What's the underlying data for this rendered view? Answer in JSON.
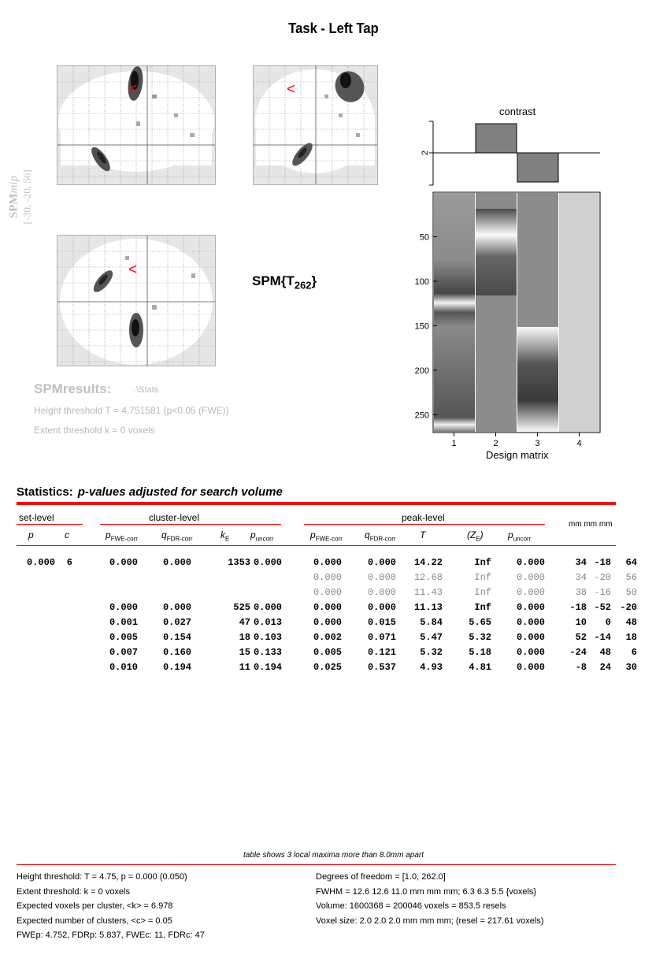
{
  "title": "Task - Left Tap",
  "mip_label": {
    "line1": "SPM",
    "line1_italic": "mip",
    "line2": "[-30, -20, 56]"
  },
  "cursor_glyph": "<",
  "statistic": {
    "main": "SPM{T",
    "sub": "262",
    "close": "}"
  },
  "results": {
    "label": "SPMresults:",
    "dir": ".\\Stats",
    "height_threshold": "Height threshold T = 4.751581  {p<0.05 (FWE)}",
    "extent_threshold": "Extent threshold k = 0 voxels"
  },
  "contrast": {
    "title": "contrast",
    "ytick": "2",
    "weights": [
      0,
      1,
      -1,
      0
    ]
  },
  "design_matrix": {
    "xlabel": "Design matrix",
    "xticks": [
      "1",
      "2",
      "3",
      "4"
    ],
    "yticks": [
      "50",
      "100",
      "150",
      "200",
      "250"
    ],
    "n_scans": 270
  },
  "statistics": {
    "title": "Statistics:",
    "subtitle": "p-values adjusted for search volume",
    "groups": {
      "set": "set-level",
      "cluster": "cluster-level",
      "peak": "peak-level",
      "coords": "mm mm mm"
    },
    "cols": {
      "set_p": "p",
      "set_c": "c",
      "cl_p": "p",
      "cl_p_sub": "FWE-corr",
      "cl_q": "q",
      "cl_q_sub": "FDR-corr",
      "cl_k": "k",
      "cl_k_sub": "E",
      "cl_pu": "p",
      "cl_pu_sub": "uncorr",
      "pk_p": "p",
      "pk_p_sub": "FWE-corr",
      "pk_q": "q",
      "pk_q_sub": "FDR-corr",
      "pk_t": "T",
      "pk_z": "(Z",
      "pk_z_sub": "E",
      "pk_z_close": ")",
      "pk_pu": "p",
      "pk_pu_sub": "uncorr"
    },
    "rows": [
      {
        "style": "bold",
        "cells": [
          "0.000",
          "6",
          "0.000",
          "0.000",
          "1353",
          "0.000",
          "0.000",
          "0.000",
          "14.22",
          "Inf",
          "0.000",
          "34",
          "-18",
          "64"
        ]
      },
      {
        "style": "dim",
        "cells": [
          "",
          "",
          "",
          "",
          "",
          "",
          "0.000",
          "0.000",
          "12.68",
          "Inf",
          "0.000",
          "34",
          "-20",
          "56"
        ]
      },
      {
        "style": "dim",
        "cells": [
          "",
          "",
          "",
          "",
          "",
          "",
          "0.000",
          "0.000",
          "11.43",
          "Inf",
          "0.000",
          "38",
          "-16",
          "50"
        ]
      },
      {
        "style": "bold",
        "cells": [
          "",
          "",
          "0.000",
          "0.000",
          "525",
          "0.000",
          "0.000",
          "0.000",
          "11.13",
          "Inf",
          "0.000",
          "-18",
          "-52",
          "-20"
        ]
      },
      {
        "style": "bold",
        "cells": [
          "",
          "",
          "0.001",
          "0.027",
          "47",
          "0.013",
          "0.000",
          "0.015",
          "5.84",
          "5.65",
          "0.000",
          "10",
          "0",
          "48"
        ]
      },
      {
        "style": "bold",
        "cells": [
          "",
          "",
          "0.005",
          "0.154",
          "18",
          "0.103",
          "0.002",
          "0.071",
          "5.47",
          "5.32",
          "0.000",
          "52",
          "-14",
          "18"
        ]
      },
      {
        "style": "bold",
        "cells": [
          "",
          "",
          "0.007",
          "0.160",
          "15",
          "0.133",
          "0.005",
          "0.121",
          "5.32",
          "5.18",
          "0.000",
          "-24",
          "48",
          "6"
        ]
      },
      {
        "style": "bold",
        "cells": [
          "",
          "",
          "0.010",
          "0.194",
          "11",
          "0.194",
          "0.025",
          "0.537",
          "4.93",
          "4.81",
          "0.000",
          "-8",
          "24",
          "30"
        ]
      }
    ]
  },
  "footnote": "table shows 3 local maxima more than 8.0mm apart",
  "footer_left": [
    "Height threshold: T = 4.75, p = 0.000 (0.050)",
    "Extent threshold: k = 0 voxels",
    "Expected voxels per cluster, <k> = 6.978",
    "Expected number of clusters, <c> = 0.05",
    "FWEp: 4.752, FDRp: 5.837, FWEc: 11, FDRc: 47"
  ],
  "footer_right": [
    "Degrees of freedom = [1.0, 262.0]",
    "FWHM = 12.6 12.6 11.0 mm mm mm; 6.3 6.3 5.5 {voxels}",
    "Volume: 1600368 = 200046 voxels = 853.5 resels",
    "Voxel size: 2.0 2.0 2.0 mm mm mm; (resel = 217.61 voxels)"
  ],
  "colors": {
    "accent_red": "#ff0000",
    "muted": "#b8b8b8",
    "contrast_bar": "#808080"
  }
}
